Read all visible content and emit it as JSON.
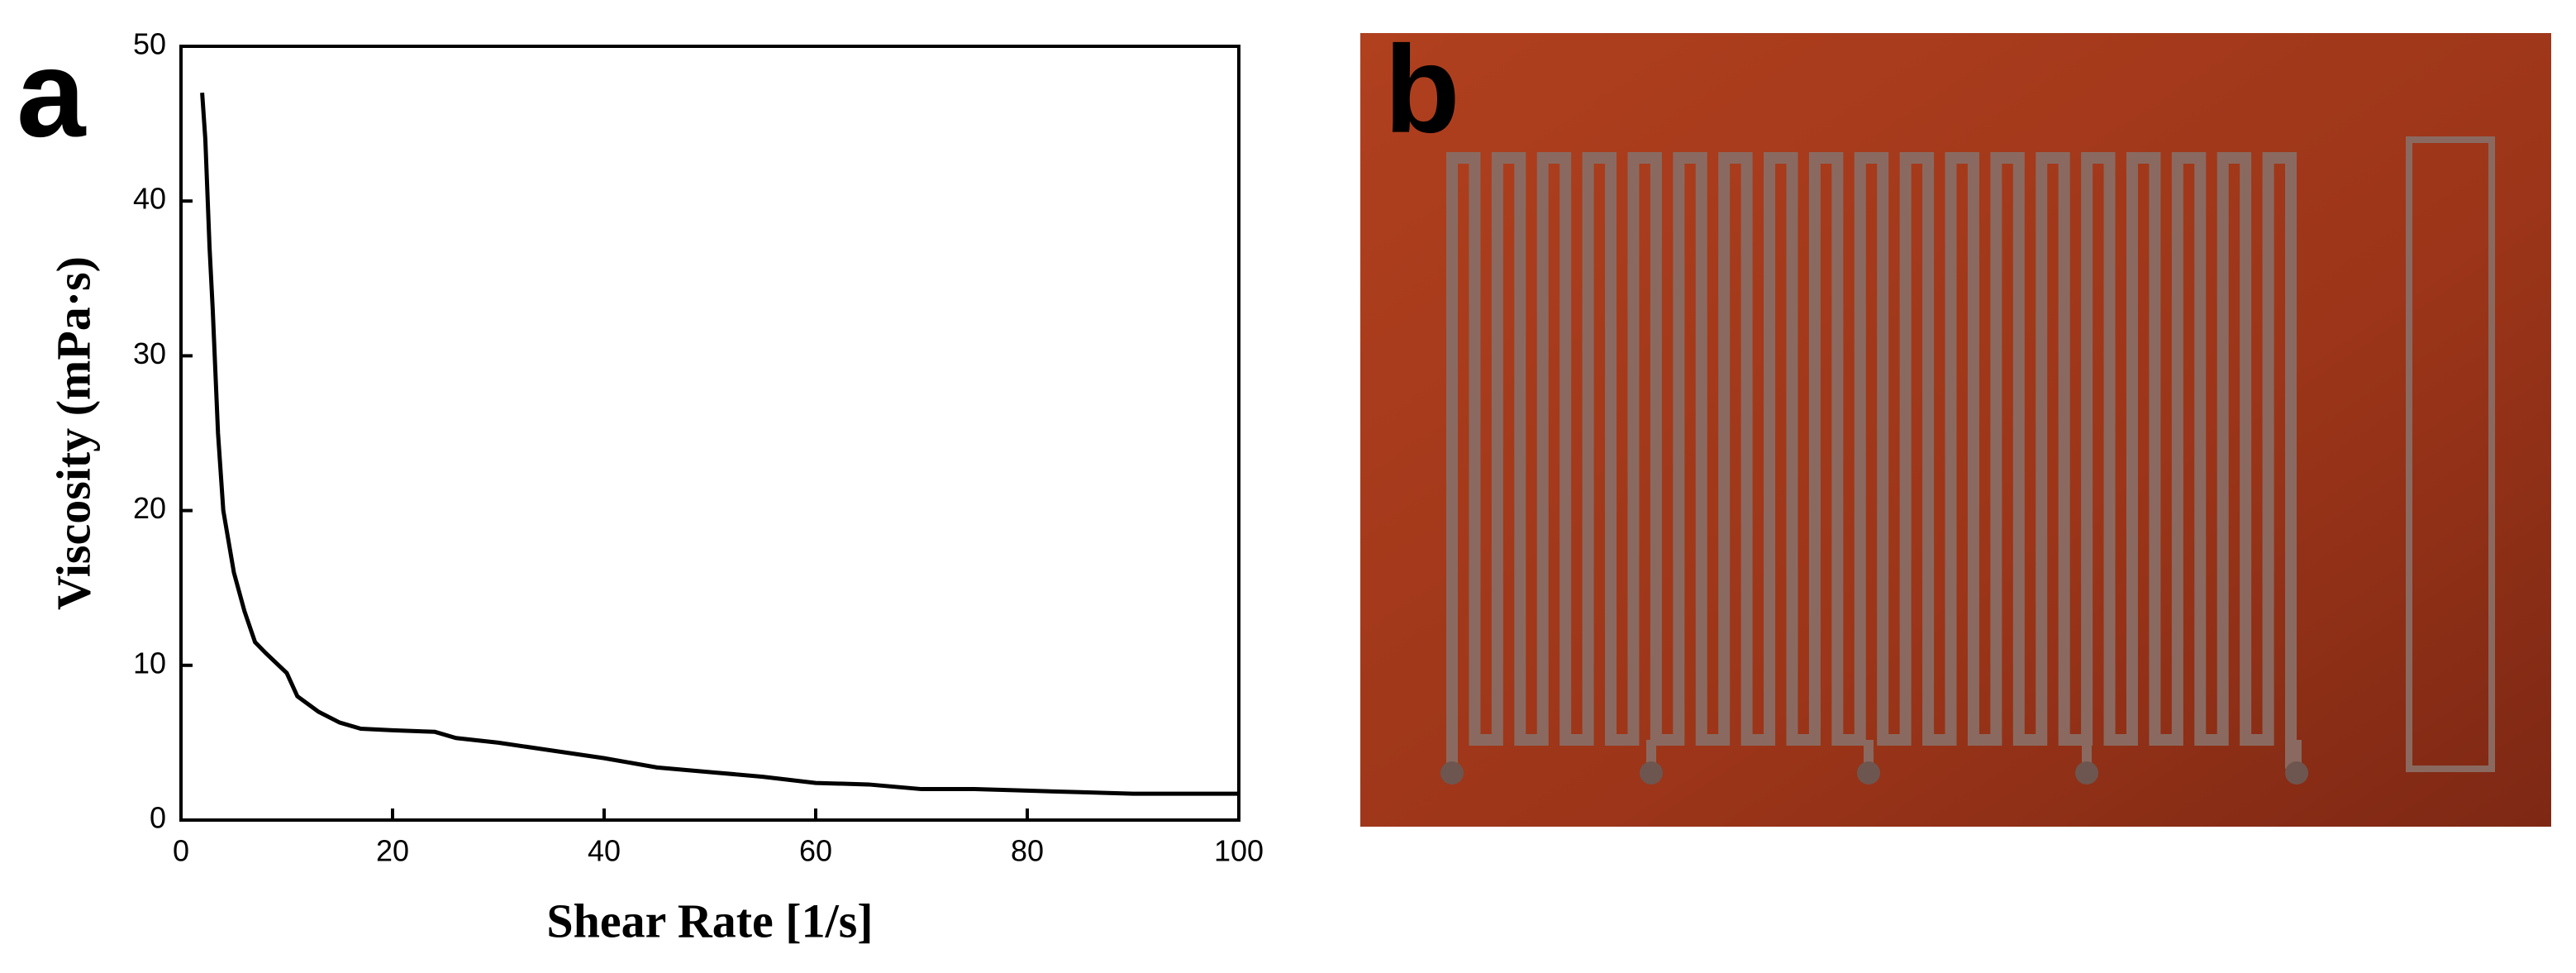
{
  "chart_data": {
    "type": "line",
    "panel_label": "a",
    "xlabel": "Shear Rate [1/s]",
    "ylabel": "Viscosity (mPa·s)",
    "x": [
      2,
      2.3,
      2.7,
      3,
      3.5,
      4,
      5,
      6,
      7,
      8,
      10,
      11,
      13,
      15,
      17,
      20,
      24,
      26,
      30,
      35,
      40,
      45,
      50,
      55,
      60,
      65,
      70,
      75,
      80,
      85,
      90,
      100
    ],
    "series": [
      {
        "color": "#000000",
        "values": [
          47,
          44,
          37,
          33,
          25,
          20,
          16,
          13.5,
          11.5,
          10.8,
          9.5,
          8,
          7,
          6.3,
          5.9,
          5.8,
          5.7,
          5.3,
          5,
          4.5,
          4,
          3.4,
          3.1,
          2.8,
          2.4,
          2.3,
          2,
          2,
          1.9,
          1.8,
          1.7,
          1.7
        ]
      }
    ],
    "xlim": [
      0,
      100
    ],
    "xticks": [
      0,
      20,
      40,
      60,
      80,
      100
    ],
    "ylim": [
      0,
      50
    ],
    "yticks": [
      0,
      10,
      20,
      30,
      40,
      50
    ]
  },
  "photo": {
    "label": "b"
  }
}
